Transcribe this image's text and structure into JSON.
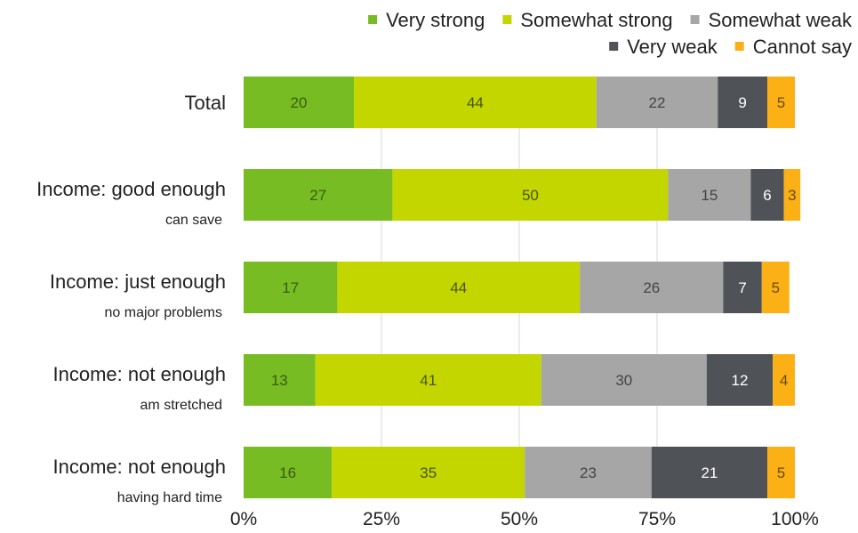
{
  "chart_data": {
    "type": "bar",
    "orientation": "horizontal",
    "stacked": true,
    "legend_position": "top",
    "grid": true,
    "xlim": [
      0,
      100
    ],
    "x_ticks": [
      "0%",
      "25%",
      "50%",
      "75%",
      "100%"
    ],
    "categories": [
      {
        "label": "Total",
        "sublabel": ""
      },
      {
        "label": "Income: good enough",
        "sublabel": "can save"
      },
      {
        "label": "Income: just enough",
        "sublabel": "no major problems"
      },
      {
        "label": "Income: not enough",
        "sublabel": "am stretched"
      },
      {
        "label": "Income: not enough",
        "sublabel": "having hard time"
      }
    ],
    "series": [
      {
        "name": "Very strong",
        "color": "#78bc23",
        "label_color": "#3b5a12",
        "values": [
          20,
          27,
          17,
          13,
          16
        ]
      },
      {
        "name": "Somewhat strong",
        "color": "#c3d600",
        "label_color": "#4d5500",
        "values": [
          44,
          50,
          44,
          41,
          35
        ]
      },
      {
        "name": "Somewhat weak",
        "color": "#a6a6a6",
        "label_color": "#444444",
        "values": [
          22,
          15,
          26,
          30,
          23
        ]
      },
      {
        "name": "Very weak",
        "color": "#4f5257",
        "label_color": "#ffffff",
        "values": [
          9,
          6,
          7,
          12,
          21
        ]
      },
      {
        "name": "Cannot say",
        "color": "#fbb116",
        "label_color": "#6a4a00",
        "values": [
          5,
          3,
          5,
          4,
          5
        ]
      }
    ]
  }
}
